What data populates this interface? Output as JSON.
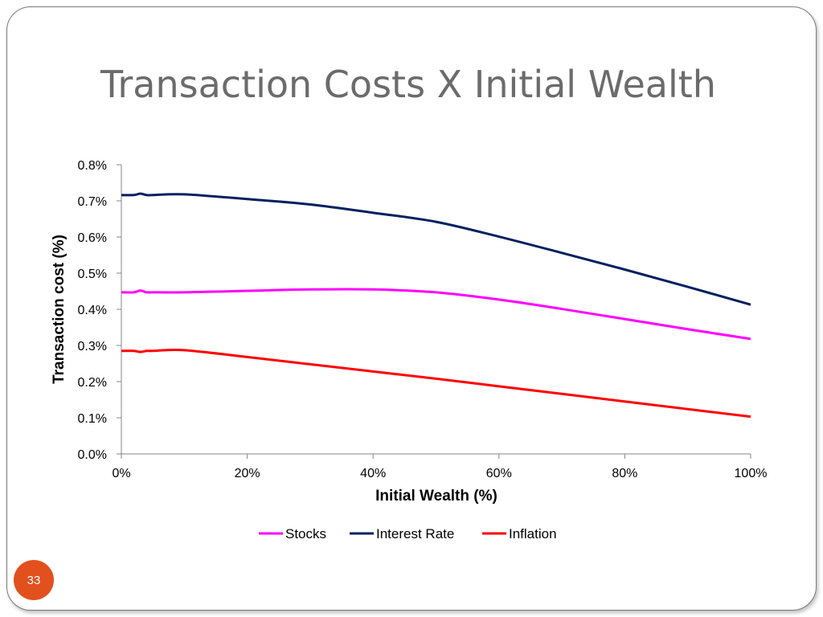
{
  "slide": {
    "title": "Transaction Costs X Initial Wealth",
    "page_number": "33",
    "badge_color": "#e2501d"
  },
  "chart_data": {
    "type": "line",
    "title": "",
    "xlabel": "Initial Wealth (%)",
    "ylabel": "Transaction cost (%)",
    "xlim": [
      0,
      100
    ],
    "ylim": [
      0.0,
      0.8
    ],
    "x_ticks": [
      "0%",
      "20%",
      "40%",
      "60%",
      "80%",
      "100%"
    ],
    "y_ticks": [
      "0.0%",
      "0.1%",
      "0.2%",
      "0.3%",
      "0.4%",
      "0.5%",
      "0.6%",
      "0.7%",
      "0.8%"
    ],
    "grid": false,
    "legend_position": "bottom",
    "series": [
      {
        "name": "Stocks",
        "color": "#ff00ff",
        "x": [
          0,
          2,
          3,
          4,
          5,
          10,
          20,
          30,
          40,
          50,
          60,
          70,
          80,
          90,
          100
        ],
        "y": [
          0.447,
          0.447,
          0.452,
          0.447,
          0.447,
          0.447,
          0.451,
          0.455,
          0.455,
          0.447,
          0.427,
          0.401,
          0.373,
          0.345,
          0.318
        ]
      },
      {
        "name": "Interest Rate",
        "color": "#002060",
        "x": [
          0,
          2,
          3,
          4,
          5,
          10,
          20,
          30,
          40,
          50,
          60,
          70,
          80,
          90,
          100
        ],
        "y": [
          0.716,
          0.716,
          0.72,
          0.716,
          0.716,
          0.718,
          0.705,
          0.69,
          0.667,
          0.642,
          0.601,
          0.556,
          0.51,
          0.462,
          0.413
        ]
      },
      {
        "name": "Inflation",
        "color": "#ff0000",
        "x": [
          0,
          2,
          3,
          4,
          5,
          10,
          20,
          30,
          40,
          50,
          60,
          70,
          80,
          90,
          100
        ],
        "y": [
          0.285,
          0.285,
          0.282,
          0.285,
          0.285,
          0.287,
          0.268,
          0.248,
          0.228,
          0.208,
          0.187,
          0.166,
          0.145,
          0.124,
          0.103
        ]
      }
    ]
  }
}
